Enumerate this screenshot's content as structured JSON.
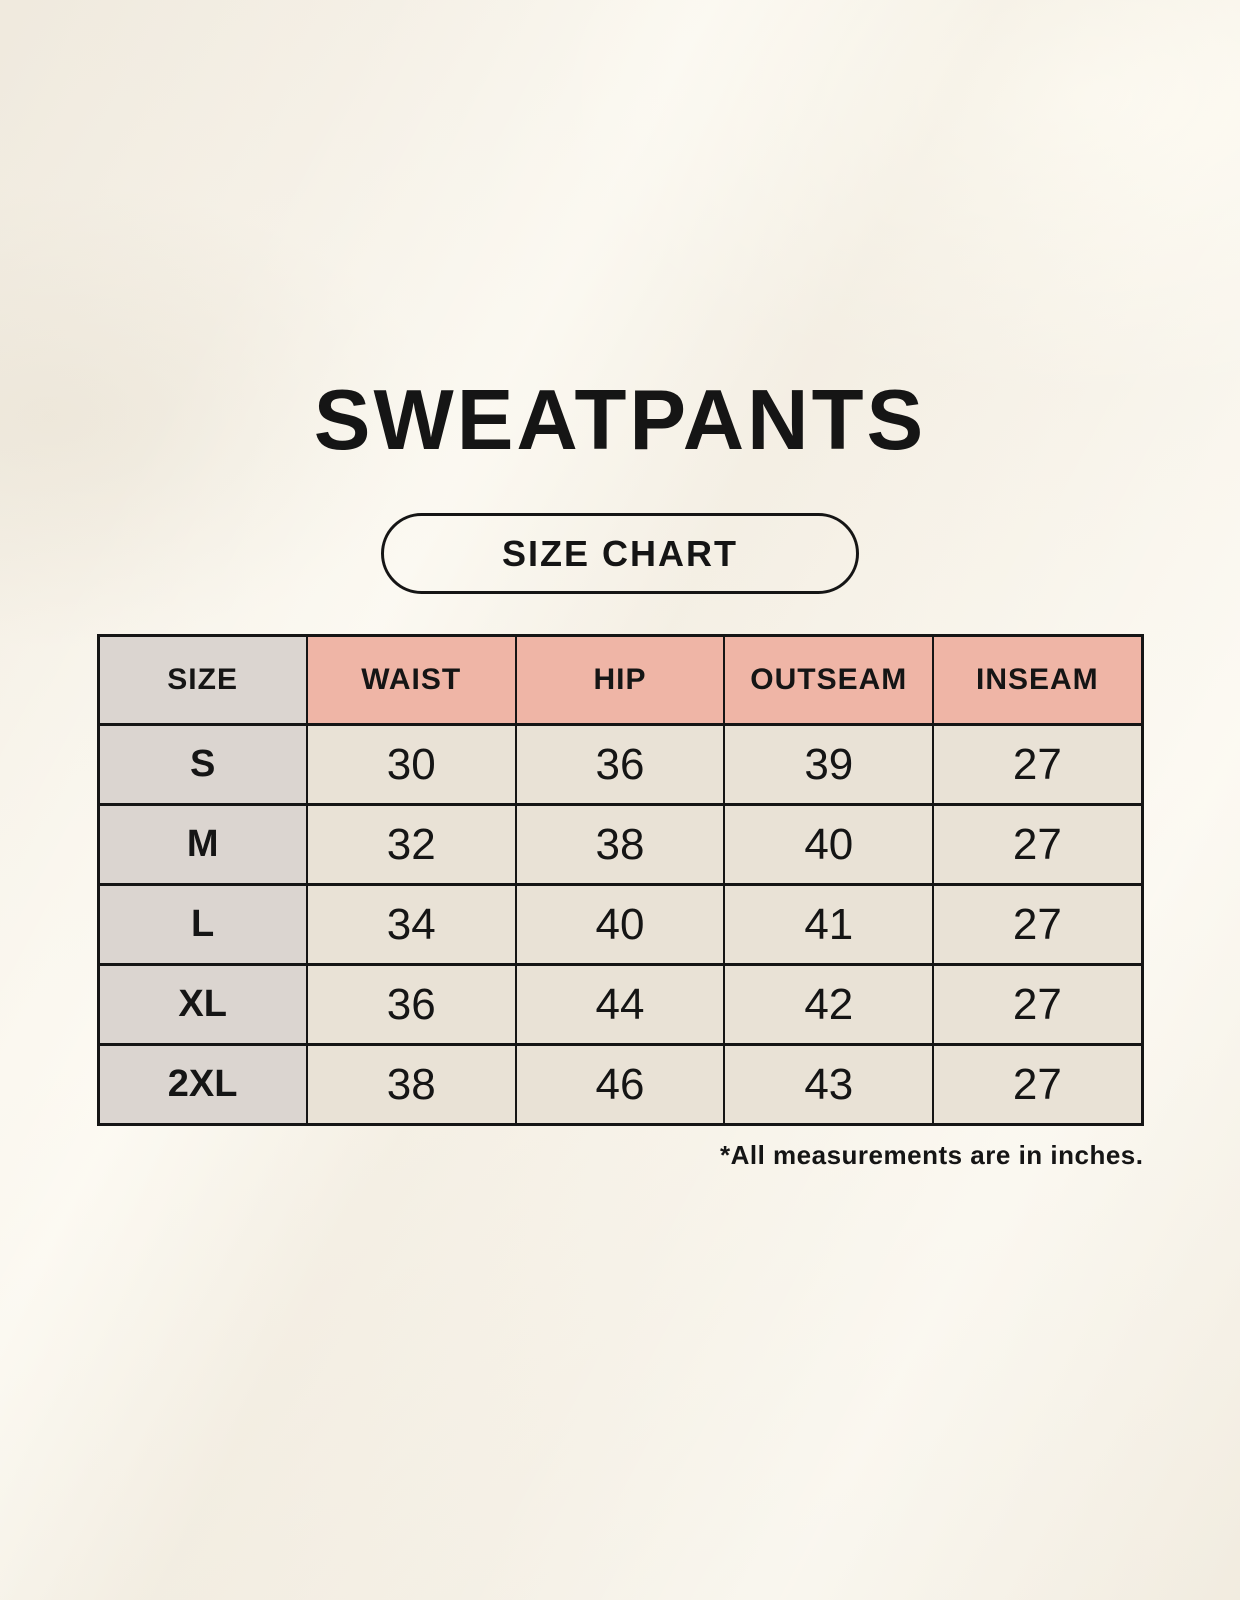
{
  "page": {
    "title": "SWEATPANTS",
    "badge_label": "SIZE CHART",
    "footnote": "*All measurements are in inches."
  },
  "chart_data": {
    "type": "table",
    "title": "SWEATPANTS",
    "subtitle": "SIZE CHART",
    "columns": [
      "SIZE",
      "WAIST",
      "HIP",
      "OUTSEAM",
      "INSEAM"
    ],
    "rows": [
      [
        "S",
        "30",
        "36",
        "39",
        "27"
      ],
      [
        "M",
        "32",
        "38",
        "40",
        "27"
      ],
      [
        "L",
        "34",
        "40",
        "41",
        "27"
      ],
      [
        "XL",
        "36",
        "44",
        "42",
        "27"
      ],
      [
        "2XL",
        "38",
        "46",
        "43",
        "27"
      ]
    ],
    "units": "inches",
    "note": "*All measurements are in inches."
  },
  "colors": {
    "background": "#f7f3ea",
    "header_accent": "#efb5a6",
    "size_column": "#dbd5d0",
    "cell": "#e9e2d6",
    "ink": "#151515"
  }
}
